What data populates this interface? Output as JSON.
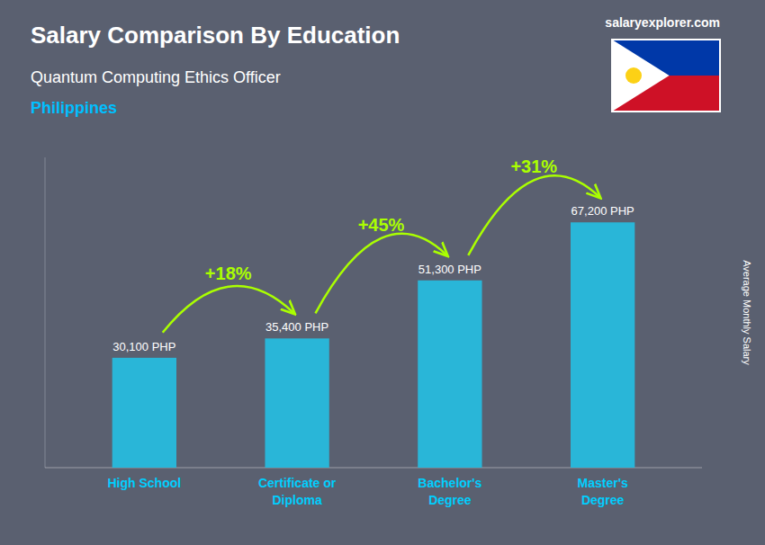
{
  "chart_data": {
    "type": "bar",
    "title": "Salary Comparison By Education",
    "subtitle": "Quantum Computing Ethics Officer",
    "annotations": [
      "Philippines",
      "salaryexplorer.com"
    ],
    "ylabel": "Average Monthly Salary",
    "categories": [
      "High School",
      "Certificate or\nDiploma",
      "Bachelor's\nDegree",
      "Master's\nDegree"
    ],
    "values": [
      30100,
      35400,
      51300,
      67200
    ],
    "value_labels": [
      "30,100 PHP",
      "35,400 PHP",
      "51,300 PHP",
      "67,200 PHP"
    ],
    "changes": [
      18,
      45,
      31
    ],
    "change_labels": [
      "+18%",
      "+45%",
      "+31%"
    ],
    "color": "#29b6d8",
    "ylim": [
      0,
      85000
    ],
    "data_labels": true,
    "tick_labels": "x",
    "grid": false
  }
}
